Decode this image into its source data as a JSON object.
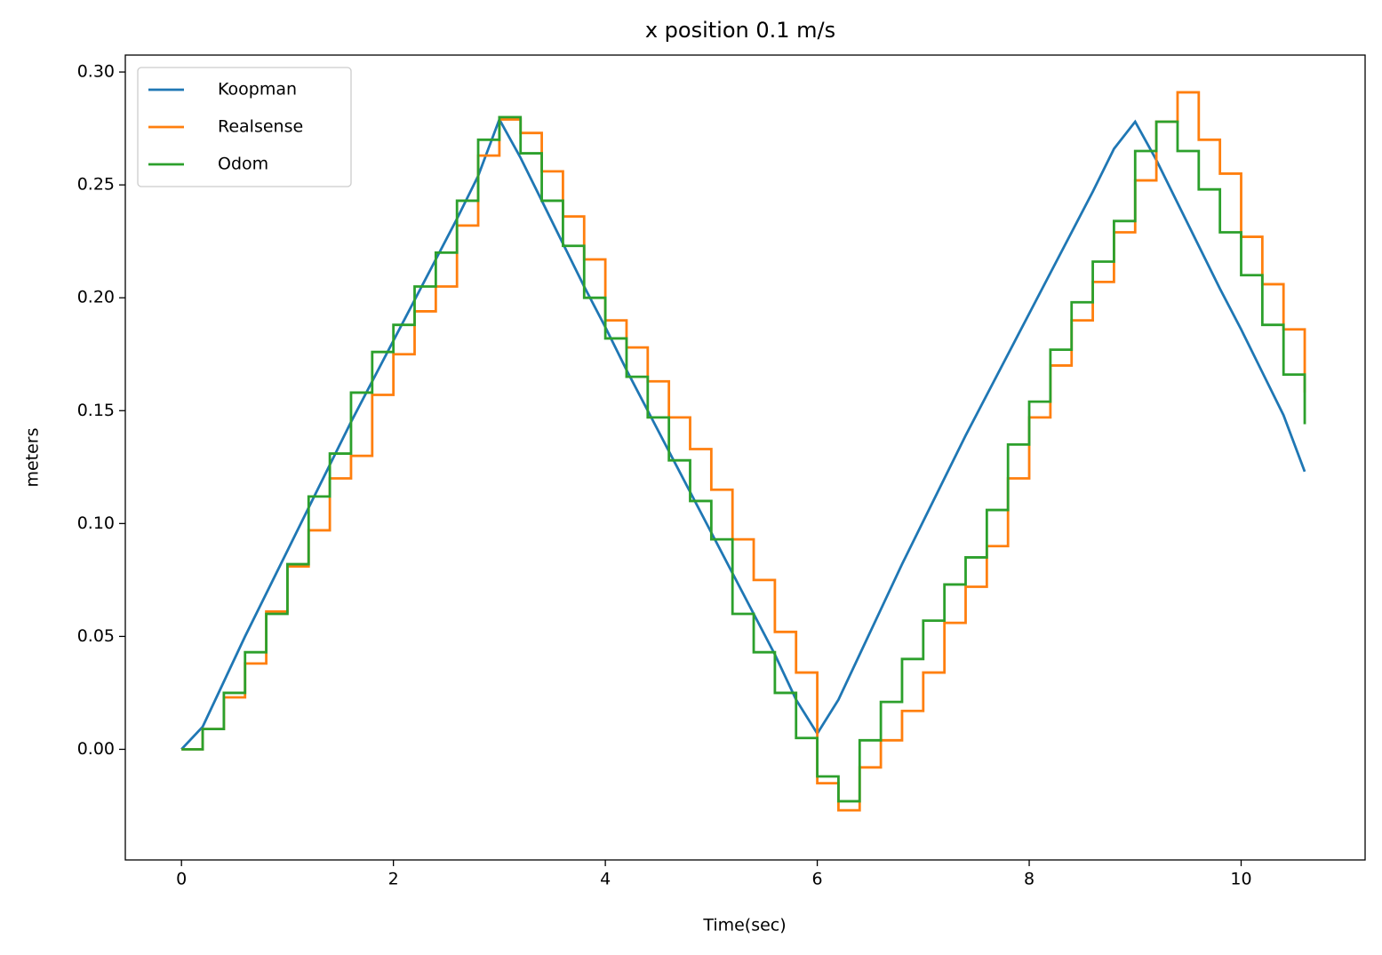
{
  "chart_data": {
    "type": "line",
    "title": "x position 0.1 m/s",
    "x_label": "Time(sec)",
    "y_label": "meters",
    "x": [
      0,
      0.2,
      0.4,
      0.6,
      0.8,
      1.0,
      1.2,
      1.4,
      1.6,
      1.8,
      2.0,
      2.2,
      2.4,
      2.6,
      2.8,
      3.0,
      3.2,
      3.4,
      3.6,
      3.8,
      4.0,
      4.2,
      4.4,
      4.6,
      4.8,
      5.0,
      5.2,
      5.4,
      5.6,
      5.8,
      6.0,
      6.2,
      6.4,
      6.6,
      6.8,
      7.0,
      7.2,
      7.4,
      7.6,
      7.8,
      8.0,
      8.2,
      8.4,
      8.6,
      8.8,
      9.0,
      9.2,
      9.4,
      9.6,
      9.8,
      10.0,
      10.2,
      10.4,
      10.6
    ],
    "series": [
      {
        "name": "Koopman",
        "color": "#1f77b4",
        "drawstyle": "default",
        "values": [
          0,
          0.01,
          0.03,
          0.05,
          0.069,
          0.088,
          0.107,
          0.126,
          0.145,
          0.163,
          0.181,
          0.199,
          0.217,
          0.235,
          0.254,
          0.279,
          0.262,
          0.243,
          0.224,
          0.205,
          0.187,
          0.168,
          0.15,
          0.132,
          0.114,
          0.096,
          0.078,
          0.06,
          0.042,
          0.022,
          0.007,
          0.022,
          0.042,
          0.062,
          0.082,
          0.101,
          0.12,
          0.139,
          0.157,
          0.175,
          0.193,
          0.211,
          0.229,
          0.247,
          0.266,
          0.278,
          0.261,
          0.242,
          0.223,
          0.204,
          0.186,
          0.167,
          0.148,
          0.123
        ]
      },
      {
        "name": "Realsense",
        "color": "#ff7f0e",
        "drawstyle": "steps-post",
        "values": [
          0,
          0.009,
          0.023,
          0.038,
          0.061,
          0.081,
          0.097,
          0.12,
          0.13,
          0.157,
          0.175,
          0.194,
          0.205,
          0.232,
          0.263,
          0.279,
          0.273,
          0.256,
          0.236,
          0.217,
          0.19,
          0.178,
          0.163,
          0.147,
          0.133,
          0.115,
          0.093,
          0.075,
          0.052,
          0.034,
          -0.015,
          -0.027,
          -0.008,
          0.004,
          0.017,
          0.034,
          0.056,
          0.072,
          0.09,
          0.12,
          0.147,
          0.17,
          0.19,
          0.207,
          0.229,
          0.252,
          0.278,
          0.291,
          0.27,
          0.255,
          0.227,
          0.206,
          0.186,
          0.158
        ]
      },
      {
        "name": "Odom",
        "color": "#2ca02c",
        "drawstyle": "steps-post",
        "values": [
          0,
          0.009,
          0.025,
          0.043,
          0.06,
          0.082,
          0.112,
          0.131,
          0.158,
          0.176,
          0.188,
          0.205,
          0.22,
          0.243,
          0.27,
          0.28,
          0.264,
          0.243,
          0.223,
          0.2,
          0.182,
          0.165,
          0.147,
          0.128,
          0.11,
          0.093,
          0.06,
          0.043,
          0.025,
          0.005,
          -0.012,
          -0.023,
          0.004,
          0.021,
          0.04,
          0.057,
          0.073,
          0.085,
          0.106,
          0.135,
          0.154,
          0.177,
          0.198,
          0.216,
          0.234,
          0.265,
          0.278,
          0.265,
          0.248,
          0.229,
          0.21,
          0.188,
          0.166,
          0.144
        ]
      }
    ],
    "xlim": [
      -0.53,
      11.17
    ],
    "ylim": [
      -0.049,
      0.3075
    ],
    "xticks": [
      0,
      2,
      4,
      6,
      8,
      10
    ],
    "yticks": [
      {
        "value": 0,
        "label": "0.00"
      },
      {
        "value": 0.05,
        "label": "0.05"
      },
      {
        "value": 0.1,
        "label": "0.10"
      },
      {
        "value": 0.15,
        "label": "0.15"
      },
      {
        "value": 0.2,
        "label": "0.20"
      },
      {
        "value": 0.25,
        "label": "0.25"
      },
      {
        "value": 0.3,
        "label": "0.30"
      }
    ],
    "grid": false,
    "legend": "upper left"
  }
}
